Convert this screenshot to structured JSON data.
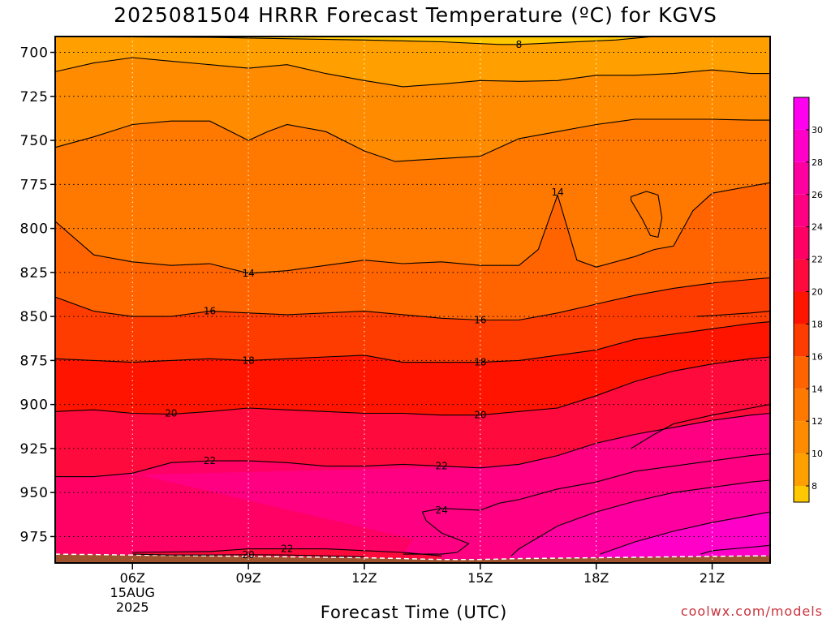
{
  "title": "2025081504 HRRR Forecast Temperature (ºC) for KGVS",
  "credit": "coolwx.com/models",
  "chart_data": {
    "type": "heatmap",
    "subtype": "time-height contour (filled)",
    "title": "2025081504 HRRR Forecast Temperature (ºC) for KGVS",
    "xlabel": "Forecast Time (UTC)",
    "ylabel": "",
    "x_range_hours_utc": [
      4.0,
      22.5
    ],
    "y_axis": {
      "label": "",
      "ticks": [
        700,
        725,
        750,
        775,
        800,
        825,
        850,
        875,
        900,
        925,
        950,
        975
      ],
      "range": [
        691,
        990
      ],
      "inverted": true
    },
    "x_ticks": [
      {
        "hour": 6,
        "label": "06Z",
        "sub": [
          "15AUG",
          "2025"
        ]
      },
      {
        "hour": 9,
        "label": "09Z",
        "sub": []
      },
      {
        "hour": 12,
        "label": "12Z",
        "sub": []
      },
      {
        "hour": 15,
        "label": "15Z",
        "sub": []
      },
      {
        "hour": 18,
        "label": "18Z",
        "sub": []
      },
      {
        "hour": 21,
        "label": "21Z",
        "sub": []
      }
    ],
    "grid": true,
    "colorbar": {
      "ticks": [
        8,
        10,
        12,
        14,
        16,
        18,
        20,
        22,
        24,
        26,
        28,
        30
      ],
      "levels": [
        {
          "min": 7,
          "max": 8,
          "color": "#ffc800"
        },
        {
          "min": 8,
          "max": 10,
          "color": "#ffa000"
        },
        {
          "min": 10,
          "max": 12,
          "color": "#ff8c00"
        },
        {
          "min": 12,
          "max": 14,
          "color": "#ff7800"
        },
        {
          "min": 14,
          "max": 16,
          "color": "#ff6400"
        },
        {
          "min": 16,
          "max": 18,
          "color": "#ff3c00"
        },
        {
          "min": 18,
          "max": 20,
          "color": "#ff1400"
        },
        {
          "min": 20,
          "max": 22,
          "color": "#ff0a3c"
        },
        {
          "min": 22,
          "max": 24,
          "color": "#ff0064"
        },
        {
          "min": 24,
          "max": 26,
          "color": "#ff0082"
        },
        {
          "min": 26,
          "max": 28,
          "color": "#ff00a0"
        },
        {
          "min": 28,
          "max": 30,
          "color": "#ff00c8"
        },
        {
          "min": 30,
          "max": 32,
          "color": "#ff00f0"
        }
      ],
      "ground_color": "#a0522d"
    },
    "contours": [
      {
        "value": 8,
        "label": "8",
        "points": [
          [
            4,
            691
          ],
          [
            8,
            691.5
          ],
          [
            12,
            693
          ],
          [
            14,
            694
          ],
          [
            15.5,
            695.5
          ],
          [
            16,
            695.5
          ],
          [
            17,
            694.5
          ],
          [
            18.5,
            693
          ],
          [
            19.5,
            691
          ]
        ]
      },
      {
        "value": 10,
        "label": "",
        "points": [
          [
            4,
            711
          ],
          [
            5,
            706
          ],
          [
            6,
            703
          ],
          [
            7,
            705
          ],
          [
            8,
            707
          ],
          [
            9,
            709
          ],
          [
            10,
            707
          ],
          [
            11,
            712
          ],
          [
            12,
            716
          ],
          [
            13,
            719.5
          ],
          [
            14,
            718
          ],
          [
            15,
            716
          ],
          [
            16,
            716.5
          ],
          [
            17,
            716
          ],
          [
            18,
            713
          ],
          [
            19,
            713
          ],
          [
            20,
            712
          ],
          [
            21,
            710
          ],
          [
            22,
            712
          ],
          [
            22.5,
            712
          ]
        ]
      },
      {
        "value": 12,
        "label": "",
        "points": [
          [
            4,
            754
          ],
          [
            5,
            748
          ],
          [
            6,
            741
          ],
          [
            7,
            739
          ],
          [
            8,
            739
          ],
          [
            9,
            750
          ],
          [
            9.5,
            745
          ],
          [
            10,
            741
          ],
          [
            11,
            745
          ],
          [
            12,
            756
          ],
          [
            12.8,
            762
          ],
          [
            13.5,
            761
          ],
          [
            15,
            759
          ],
          [
            16,
            749
          ],
          [
            17,
            745
          ],
          [
            18,
            741
          ],
          [
            19,
            738
          ],
          [
            20,
            738
          ],
          [
            21,
            738
          ],
          [
            22,
            738.5
          ],
          [
            22.5,
            738.5
          ]
        ]
      },
      {
        "value": 14,
        "label": "14",
        "points": [
          [
            4,
            796
          ],
          [
            5,
            815
          ],
          [
            6,
            819
          ],
          [
            7,
            821
          ],
          [
            8,
            820
          ],
          [
            9,
            825.5
          ],
          [
            10,
            824
          ],
          [
            11,
            821
          ],
          [
            12,
            818
          ],
          [
            13,
            820
          ],
          [
            14,
            819
          ],
          [
            15,
            821
          ],
          [
            16,
            821
          ],
          [
            16.5,
            812
          ],
          [
            17,
            781
          ],
          [
            17.5,
            818
          ],
          [
            18,
            822
          ],
          [
            19,
            816
          ],
          [
            19.5,
            812
          ],
          [
            20,
            810
          ],
          [
            20.5,
            790
          ],
          [
            21,
            780
          ],
          [
            22,
            776
          ],
          [
            22.5,
            774
          ]
        ]
      },
      {
        "value": 14,
        "label": "",
        "points": [
          [
            18.9,
            782
          ],
          [
            19.3,
            779
          ],
          [
            19.6,
            781
          ],
          [
            19.7,
            794
          ],
          [
            19.6,
            805
          ],
          [
            19.4,
            804
          ],
          [
            19.2,
            795
          ],
          [
            18.9,
            784
          ],
          [
            18.9,
            782
          ]
        ]
      },
      {
        "value": 16,
        "label": "16",
        "points": [
          [
            4,
            839
          ],
          [
            5,
            847
          ],
          [
            6,
            850
          ],
          [
            7,
            850
          ],
          [
            8,
            847
          ],
          [
            9,
            848
          ],
          [
            10,
            849
          ],
          [
            11,
            848
          ],
          [
            12,
            847
          ],
          [
            13,
            849
          ],
          [
            14,
            851
          ],
          [
            15,
            852
          ],
          [
            16,
            852
          ],
          [
            17,
            848
          ],
          [
            18,
            843
          ],
          [
            19,
            838
          ],
          [
            20,
            834
          ],
          [
            21,
            831
          ],
          [
            22,
            829
          ],
          [
            22.5,
            828
          ]
        ]
      },
      {
        "value": 16,
        "label": "",
        "points": [
          [
            20.6,
            850
          ],
          [
            21,
            849.5
          ],
          [
            22,
            848
          ],
          [
            22.5,
            847
          ]
        ]
      },
      {
        "value": 18,
        "label": "18",
        "points": [
          [
            4,
            874
          ],
          [
            5,
            875
          ],
          [
            6,
            876
          ],
          [
            7,
            875
          ],
          [
            8,
            874
          ],
          [
            9,
            875
          ],
          [
            10,
            874
          ],
          [
            11,
            873
          ],
          [
            12,
            872
          ],
          [
            13,
            876
          ],
          [
            14,
            876
          ],
          [
            15,
            876
          ],
          [
            16,
            875
          ],
          [
            17,
            872
          ],
          [
            18,
            869
          ],
          [
            19,
            863
          ],
          [
            20,
            860
          ],
          [
            21,
            857
          ],
          [
            22,
            854
          ],
          [
            22.5,
            853
          ]
        ]
      },
      {
        "value": 20,
        "label": "20",
        "points": [
          [
            4,
            904
          ],
          [
            5,
            903
          ],
          [
            6,
            905
          ],
          [
            7,
            905.5
          ],
          [
            8,
            904
          ],
          [
            9,
            902
          ],
          [
            10,
            903
          ],
          [
            11,
            904
          ],
          [
            12,
            905
          ],
          [
            13,
            905
          ],
          [
            14,
            906
          ],
          [
            15,
            906
          ],
          [
            16,
            904
          ],
          [
            17,
            902
          ],
          [
            18,
            895
          ],
          [
            19,
            887
          ],
          [
            20,
            881
          ],
          [
            21,
            877
          ],
          [
            22,
            874
          ],
          [
            22.5,
            873
          ]
        ]
      },
      {
        "value": 20,
        "label": "",
        "points": [
          [
            18.9,
            925
          ],
          [
            19.5,
            917
          ],
          [
            20,
            911
          ],
          [
            21,
            906
          ],
          [
            22,
            902
          ],
          [
            22.5,
            900
          ]
        ]
      },
      {
        "value": 22,
        "label": "22",
        "points": [
          [
            4,
            941
          ],
          [
            5,
            941
          ],
          [
            6,
            939
          ],
          [
            7,
            933
          ],
          [
            8,
            932
          ],
          [
            9,
            932
          ],
          [
            10,
            933
          ],
          [
            11,
            935
          ],
          [
            12,
            935
          ],
          [
            13,
            934
          ],
          [
            14,
            935
          ],
          [
            15,
            936
          ],
          [
            16,
            934
          ],
          [
            17,
            929
          ],
          [
            18,
            922
          ],
          [
            19,
            917
          ],
          [
            20,
            913
          ],
          [
            21,
            909
          ],
          [
            22,
            906
          ],
          [
            22.5,
            905
          ]
        ]
      },
      {
        "value": 24,
        "label": "24",
        "points": [
          [
            13.5,
            961
          ],
          [
            14,
            959
          ],
          [
            15,
            960
          ],
          [
            15.5,
            956
          ],
          [
            16,
            954
          ],
          [
            17,
            948
          ],
          [
            18,
            944
          ],
          [
            19,
            938
          ],
          [
            20,
            935
          ],
          [
            21,
            932
          ],
          [
            22,
            929
          ],
          [
            22.5,
            928
          ]
        ]
      },
      {
        "value": 24,
        "label": "",
        "points": [
          [
            13.5,
            961
          ],
          [
            13.6,
            966
          ],
          [
            14,
            973
          ],
          [
            14.7,
            979
          ],
          [
            14.4,
            984
          ],
          [
            14,
            985
          ],
          [
            13,
            985
          ]
        ]
      },
      {
        "value": 26,
        "label": "",
        "points": [
          [
            15.8,
            986
          ],
          [
            16,
            982
          ],
          [
            17,
            969
          ],
          [
            18,
            961
          ],
          [
            19,
            955
          ],
          [
            20,
            950
          ],
          [
            21,
            947
          ],
          [
            22,
            944
          ],
          [
            22.5,
            943
          ]
        ]
      },
      {
        "value": 28,
        "label": "",
        "points": [
          [
            18.1,
            985
          ],
          [
            19,
            978
          ],
          [
            20,
            972
          ],
          [
            21,
            967
          ],
          [
            22,
            963
          ],
          [
            22.5,
            961
          ]
        ]
      },
      {
        "value": 30,
        "label": "",
        "points": [
          [
            20.7,
            985
          ],
          [
            21,
            983
          ],
          [
            22,
            981
          ],
          [
            22.5,
            980
          ]
        ]
      },
      {
        "value": 22,
        "label": "22",
        "points": [
          [
            6,
            984
          ],
          [
            8,
            983.5
          ],
          [
            9,
            982
          ],
          [
            10,
            982
          ],
          [
            11,
            982
          ],
          [
            12,
            983
          ],
          [
            13,
            984
          ],
          [
            13.5,
            985
          ],
          [
            14,
            986
          ]
        ]
      },
      {
        "value": 20,
        "label": "20",
        "points": [
          [
            6,
            985
          ],
          [
            7,
            985.5
          ],
          [
            8,
            985.5
          ],
          [
            9,
            985.3
          ],
          [
            10,
            985.5
          ],
          [
            11,
            986
          ],
          [
            12,
            986.5
          ]
        ]
      }
    ],
    "contour_labels": [
      {
        "text": "8",
        "x": 16.0,
        "y": 695.5
      },
      {
        "text": "14",
        "x": 17.0,
        "y": 779.5
      },
      {
        "text": "14",
        "x": 9.0,
        "y": 825.5
      },
      {
        "text": "16",
        "x": 8.0,
        "y": 847.0
      },
      {
        "text": "16",
        "x": 15.0,
        "y": 852.0
      },
      {
        "text": "18",
        "x": 9.0,
        "y": 875.0
      },
      {
        "text": "18",
        "x": 15.0,
        "y": 876.0
      },
      {
        "text": "20",
        "x": 7.0,
        "y": 905.0
      },
      {
        "text": "20",
        "x": 15.0,
        "y": 906.0
      },
      {
        "text": "22",
        "x": 8.0,
        "y": 932.0
      },
      {
        "text": "22",
        "x": 14.0,
        "y": 935.0
      },
      {
        "text": "24",
        "x": 14.0,
        "y": 960.0
      },
      {
        "text": "22",
        "x": 10.0,
        "y": 982.0
      },
      {
        "text": "20",
        "x": 9.0,
        "y": 985.5
      }
    ],
    "surface_pressure": [
      [
        4,
        985
      ],
      [
        6,
        985.5
      ],
      [
        8,
        986
      ],
      [
        10,
        986.5
      ],
      [
        12,
        987
      ],
      [
        13,
        987.5
      ],
      [
        14,
        988
      ],
      [
        15,
        988
      ],
      [
        16,
        987.5
      ],
      [
        18,
        987
      ],
      [
        20,
        986.5
      ],
      [
        22,
        986
      ],
      [
        22.5,
        986
      ]
    ]
  }
}
